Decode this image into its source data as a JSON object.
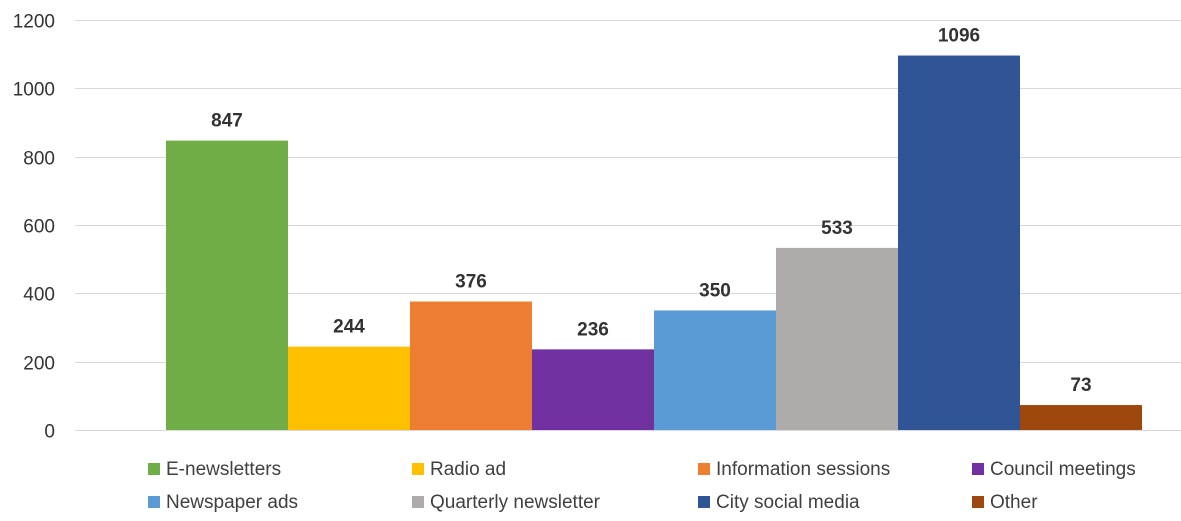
{
  "chart_data": {
    "type": "bar",
    "title": "",
    "xlabel": "",
    "ylabel": "",
    "ylim": [
      0,
      1200
    ],
    "yticks": [
      0,
      200,
      400,
      600,
      800,
      1000,
      1200
    ],
    "grid": true,
    "legend_position": "bottom",
    "categories": [
      "E-newsletters",
      "Radio ad",
      "Information sessions",
      "Council meetings",
      "Newspaper ads",
      "Quarterly newsletter",
      "City social media",
      "Other"
    ],
    "values": [
      847,
      244,
      376,
      236,
      350,
      533,
      1096,
      73
    ],
    "colors": [
      "#70ad47",
      "#ffc000",
      "#ed7d31",
      "#7030a0",
      "#5b9bd5",
      "#afabab",
      "#2f5597",
      "#9e480e"
    ]
  }
}
